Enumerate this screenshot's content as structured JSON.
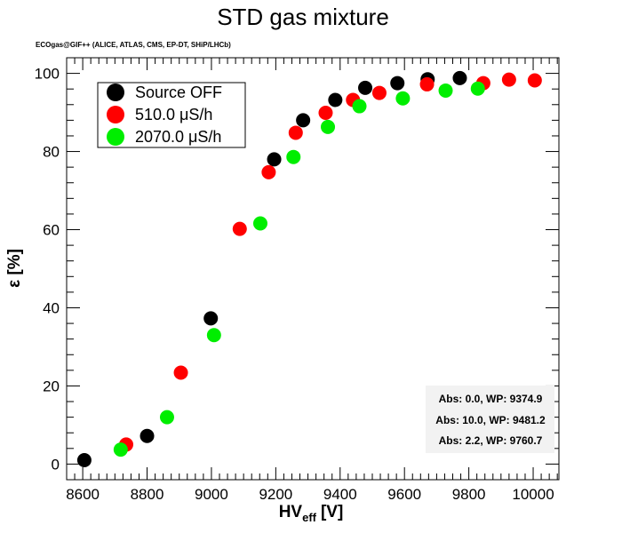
{
  "chart_data": {
    "type": "scatter",
    "title": "STD gas mixture",
    "subtitle": "ECOgas@GIF++ (ALICE, ATLAS, CMS, EP-DT, SHiP/LHCb)",
    "xlabel_main": "HV",
    "xlabel_sub": "eff",
    "xlabel_unit": "[V]",
    "ylabel": "ε [%]",
    "xlim": [
      8550,
      10080
    ],
    "ylim": [
      -4,
      104
    ],
    "xticks": [
      8600,
      8800,
      9000,
      9200,
      9400,
      9600,
      9800,
      10000
    ],
    "yticks": [
      0,
      20,
      40,
      60,
      80,
      100
    ],
    "legend_position": "top-left",
    "series": [
      {
        "name": "Source OFF",
        "color": "#000000",
        "x": [
          8605,
          8800,
          8998,
          9195,
          9285,
          9385,
          9478,
          9578,
          9672,
          9772
        ],
        "y": [
          1.0,
          7.2,
          37.3,
          78.0,
          88.0,
          93.2,
          96.3,
          97.5,
          98.5,
          98.8
        ]
      },
      {
        "name": "510.0 μS/h",
        "color": "#ff0000",
        "x": [
          8735,
          8905,
          9088,
          9178,
          9262,
          9355,
          9440,
          9522,
          9670,
          9845,
          9925,
          10005
        ],
        "y": [
          5.0,
          23.4,
          60.2,
          74.7,
          84.8,
          89.9,
          93.2,
          95.0,
          97.2,
          97.5,
          98.4,
          98.2
        ]
      },
      {
        "name": "2070.0 μS/h",
        "color": "#00ee00",
        "x": [
          8718,
          8862,
          9008,
          9152,
          9255,
          9362,
          9460,
          9595,
          9728,
          9828
        ],
        "y": [
          3.7,
          12.0,
          33.0,
          61.6,
          78.6,
          86.3,
          91.6,
          93.6,
          95.6,
          96.1
        ]
      }
    ],
    "annotations": [
      "Abs: 0.0, WP: 9374.9",
      "Abs: 10.0, WP: 9481.2",
      "Abs: 2.2, WP: 9760.7"
    ]
  }
}
